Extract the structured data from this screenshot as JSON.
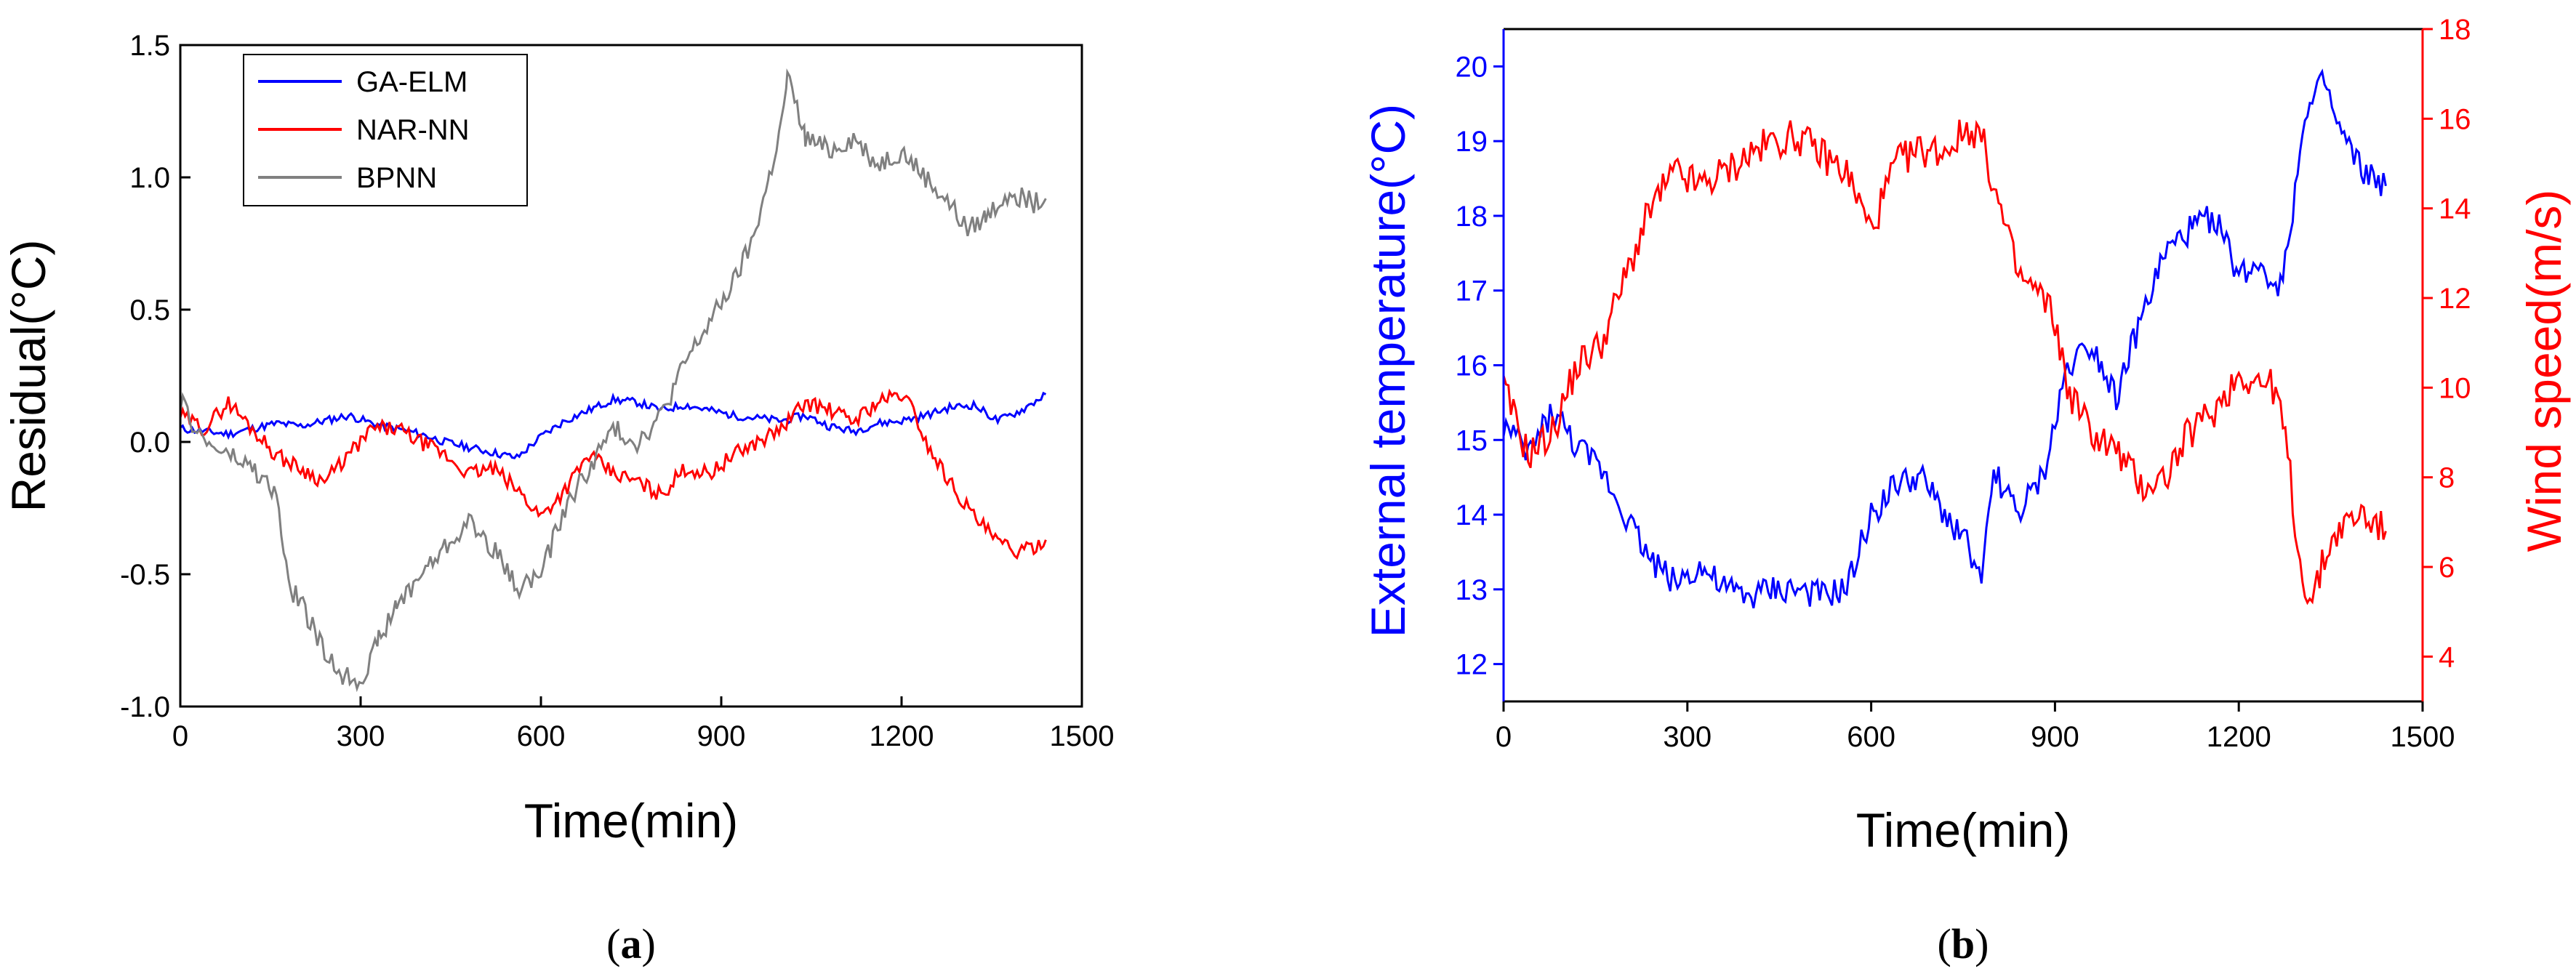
{
  "chart_data": [
    {
      "type": "line",
      "panel_caption_open": "(",
      "panel_caption_letter": "a",
      "panel_caption_close": ")",
      "xlabel": "Time(min)",
      "ylabel": "Residual(°C)",
      "xlim": [
        0,
        1500
      ],
      "ylim": [
        -1.0,
        1.5
      ],
      "xticks": [
        "0",
        "300",
        "600",
        "900",
        "1200",
        "1500"
      ],
      "yticks": [
        "-1.0",
        "-0.5",
        "0.0",
        "0.5",
        "1.0",
        "1.5"
      ],
      "grid": false,
      "legend_position": "top-left",
      "series": [
        {
          "name": "GA-ELM",
          "color": "#0000ff",
          "x": [
            0,
            40,
            80,
            120,
            160,
            200,
            240,
            280,
            320,
            360,
            400,
            440,
            480,
            520,
            560,
            600,
            640,
            680,
            720,
            760,
            800,
            840,
            880,
            920,
            960,
            1000,
            1040,
            1080,
            1120,
            1160,
            1200,
            1240,
            1280,
            1320,
            1360,
            1400,
            1440
          ],
          "y": [
            0.05,
            0.04,
            0.03,
            0.05,
            0.07,
            0.06,
            0.08,
            0.1,
            0.07,
            0.05,
            0.03,
            0.0,
            -0.02,
            -0.04,
            -0.06,
            0.02,
            0.08,
            0.12,
            0.16,
            0.15,
            0.12,
            0.14,
            0.12,
            0.1,
            0.09,
            0.08,
            0.1,
            0.06,
            0.04,
            0.07,
            0.08,
            0.1,
            0.13,
            0.14,
            0.08,
            0.12,
            0.18
          ]
        },
        {
          "name": "NAR-NN",
          "color": "#ff0000",
          "x": [
            0,
            40,
            80,
            120,
            160,
            200,
            240,
            280,
            320,
            360,
            400,
            440,
            480,
            520,
            560,
            600,
            640,
            680,
            720,
            760,
            800,
            840,
            880,
            920,
            960,
            1000,
            1040,
            1080,
            1120,
            1160,
            1200,
            1220,
            1240,
            1280,
            1320,
            1360,
            1400,
            1440
          ],
          "y": [
            0.1,
            0.05,
            0.15,
            0.05,
            -0.05,
            -0.1,
            -0.15,
            -0.05,
            0.05,
            0.05,
            0.0,
            -0.05,
            -0.12,
            -0.1,
            -0.18,
            -0.28,
            -0.18,
            -0.05,
            -0.12,
            -0.15,
            -0.2,
            -0.1,
            -0.12,
            -0.05,
            0.0,
            0.05,
            0.15,
            0.12,
            0.08,
            0.15,
            0.18,
            0.12,
            0.0,
            -0.15,
            -0.28,
            -0.38,
            -0.42,
            -0.37
          ]
        },
        {
          "name": "BPNN",
          "color": "#808080",
          "x": [
            0,
            40,
            80,
            120,
            160,
            180,
            200,
            240,
            270,
            300,
            330,
            360,
            400,
            440,
            480,
            520,
            560,
            600,
            640,
            680,
            720,
            760,
            800,
            840,
            880,
            920,
            950,
            980,
            1000,
            1010,
            1040,
            1080,
            1120,
            1160,
            1200,
            1240,
            1280,
            1310,
            1340,
            1380,
            1420,
            1440
          ],
          "y": [
            0.15,
            0.0,
            -0.05,
            -0.1,
            -0.2,
            -0.55,
            -0.6,
            -0.8,
            -0.88,
            -0.9,
            -0.75,
            -0.62,
            -0.5,
            -0.4,
            -0.3,
            -0.4,
            -0.55,
            -0.5,
            -0.25,
            -0.1,
            0.05,
            0.0,
            0.1,
            0.3,
            0.45,
            0.6,
            0.75,
            1.0,
            1.2,
            1.38,
            1.15,
            1.1,
            1.15,
            1.05,
            1.1,
            1.0,
            0.9,
            0.8,
            0.85,
            0.95,
            0.9,
            0.92
          ]
        }
      ]
    },
    {
      "type": "line",
      "panel_caption_open": "(",
      "panel_caption_letter": "b",
      "panel_caption_close": ")",
      "xlabel": "Time(min)",
      "ylabel_left": "External temperature(°C)",
      "ylabel_right": "Wind speed(m/s)",
      "xlim": [
        0,
        1500
      ],
      "ylim_left": [
        11.5,
        20.5
      ],
      "ylim_right": [
        3,
        18
      ],
      "xticks": [
        "0",
        "300",
        "600",
        "900",
        "1200",
        "1500"
      ],
      "yticks_left": [
        "12",
        "13",
        "14",
        "15",
        "16",
        "17",
        "18",
        "19",
        "20"
      ],
      "yticks_right": [
        "4",
        "6",
        "8",
        "10",
        "12",
        "14",
        "16",
        "18"
      ],
      "left_axis_color": "#0000ff",
      "right_axis_color": "#ff0000",
      "grid": false,
      "series": [
        {
          "name": "External temperature",
          "axis": "left",
          "color": "#0000ff",
          "x": [
            0,
            40,
            80,
            120,
            160,
            200,
            240,
            280,
            320,
            360,
            400,
            440,
            480,
            520,
            560,
            600,
            640,
            680,
            720,
            760,
            780,
            800,
            840,
            880,
            900,
            920,
            960,
            1000,
            1040,
            1080,
            1120,
            1160,
            1200,
            1240,
            1260,
            1280,
            1300,
            1320,
            1340,
            1360,
            1400,
            1440
          ],
          "y": [
            15.2,
            14.8,
            15.4,
            14.9,
            14.6,
            14.0,
            13.4,
            13.1,
            13.3,
            13.0,
            12.9,
            13.0,
            13.0,
            12.9,
            13.0,
            14.0,
            14.4,
            14.5,
            14.0,
            13.6,
            13.0,
            14.6,
            14.0,
            14.5,
            15.2,
            16.0,
            16.3,
            15.6,
            16.6,
            17.5,
            17.8,
            18.0,
            17.2,
            17.4,
            17.0,
            17.5,
            19.0,
            19.5,
            19.8,
            19.2,
            18.6,
            18.4
          ]
        },
        {
          "name": "Wind speed",
          "axis": "right",
          "color": "#ff0000",
          "x": [
            0,
            40,
            80,
            120,
            160,
            200,
            240,
            280,
            320,
            360,
            400,
            440,
            480,
            520,
            560,
            600,
            640,
            680,
            720,
            760,
            780,
            800,
            840,
            880,
            900,
            920,
            960,
            1000,
            1040,
            1080,
            1120,
            1160,
            1200,
            1220,
            1260,
            1280,
            1300,
            1320,
            1340,
            1360,
            1400,
            1440
          ],
          "y": [
            10.0,
            8.5,
            9.0,
            10.5,
            11.0,
            12.5,
            14.0,
            14.8,
            14.5,
            14.8,
            15.2,
            15.5,
            15.6,
            15.2,
            14.8,
            13.5,
            15.0,
            15.3,
            15.3,
            15.8,
            15.6,
            14.5,
            12.5,
            12.0,
            11.5,
            10.0,
            9.0,
            8.6,
            7.8,
            8.0,
            9.0,
            9.5,
            10.3,
            10.2,
            10.0,
            8.5,
            6.0,
            5.2,
            6.2,
            6.8,
            7.2,
            6.8
          ]
        }
      ]
    }
  ]
}
